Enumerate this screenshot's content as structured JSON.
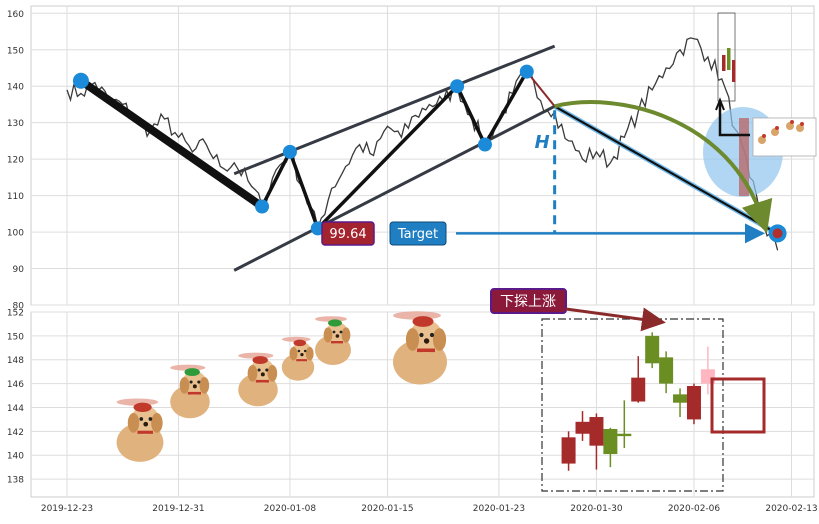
{
  "chart_data": [
    {
      "type": "line",
      "panel": "top",
      "ylim": [
        80,
        162
      ],
      "yticks": [
        "80",
        "90",
        "100",
        "110",
        "120",
        "130",
        "140",
        "150",
        "160"
      ],
      "grid": true,
      "price_path": [
        [
          "2019-12-23",
          139
        ],
        [
          "2019-12-24",
          138
        ],
        [
          "2019-12-25",
          141
        ],
        [
          "2019-12-26",
          136
        ],
        [
          "2019-12-27",
          135
        ],
        [
          "2019-12-28",
          130
        ],
        [
          "2019-12-29",
          128
        ],
        [
          "2019-12-30",
          131
        ],
        [
          "2019-12-31",
          126
        ],
        [
          "2020-01-01",
          122
        ],
        [
          "2020-01-02",
          124
        ],
        [
          "2020-01-03",
          118
        ],
        [
          "2020-01-04",
          119
        ],
        [
          "2020-01-05",
          114
        ],
        [
          "2020-01-06",
          107
        ],
        [
          "2020-01-07",
          117
        ],
        [
          "2020-01-08",
          122
        ],
        [
          "2020-01-09",
          111
        ],
        [
          "2020-01-10",
          101
        ],
        [
          "2020-01-11",
          112
        ],
        [
          "2020-01-12",
          118
        ],
        [
          "2020-01-13",
          124
        ],
        [
          "2020-01-14",
          121
        ],
        [
          "2020-01-15",
          129
        ],
        [
          "2020-01-16",
          126
        ],
        [
          "2020-01-17",
          132
        ],
        [
          "2020-01-18",
          135
        ],
        [
          "2020-01-19",
          136
        ],
        [
          "2020-01-20",
          140
        ],
        [
          "2020-01-21",
          132
        ],
        [
          "2020-01-22",
          124
        ],
        [
          "2020-01-23",
          131
        ],
        [
          "2020-01-24",
          138
        ],
        [
          "2020-01-25",
          144
        ],
        [
          "2020-01-26",
          136
        ],
        [
          "2020-01-27",
          133
        ],
        [
          "2020-01-28",
          125
        ],
        [
          "2020-01-29",
          120
        ],
        [
          "2020-01-30",
          122
        ],
        [
          "2020-01-31",
          119
        ],
        [
          "2020-02-01",
          126
        ],
        [
          "2020-02-02",
          133
        ],
        [
          "2020-02-03",
          139
        ],
        [
          "2020-02-04",
          145
        ],
        [
          "2020-02-05",
          150
        ],
        [
          "2020-02-06",
          153
        ],
        [
          "2020-02-07",
          148
        ],
        [
          "2020-02-08",
          142
        ],
        [
          "2020-02-09",
          128
        ],
        [
          "2020-02-10",
          115
        ],
        [
          "2020-02-11",
          102
        ],
        [
          "2020-02-12",
          95
        ]
      ],
      "pattern_points": [
        {
          "x": "2019-12-24",
          "y": 141.5
        },
        {
          "x": "2020-01-06",
          "y": 107
        },
        {
          "x": "2020-01-08",
          "y": 122
        },
        {
          "x": "2020-01-10",
          "y": 101
        },
        {
          "x": "2020-01-20",
          "y": 140
        },
        {
          "x": "2020-01-22",
          "y": 124
        },
        {
          "x": "2020-01-25",
          "y": 144
        }
      ],
      "trend_lines": [
        {
          "from": {
            "x": "2020-01-04",
            "y": 116
          },
          "to": {
            "x": "2020-01-27",
            "y": 151
          }
        },
        {
          "from": {
            "x": "2020-01-04",
            "y": 89.5
          },
          "to": {
            "x": "2020-01-27",
            "y": 134.5
          }
        }
      ],
      "breakout_point": {
        "x": "2020-01-27",
        "y": 134.5
      },
      "target_point": {
        "x": "2020-02-12",
        "y": 99.64
      },
      "annotations": {
        "height_label": "H",
        "price_value": "99.64",
        "target_label": "Target"
      },
      "colors": {
        "price": "#3a3a3a",
        "points": "#1b8ad8",
        "channel": "#363a44",
        "arrow_green": "#6e8a2e",
        "target_blue": "#1f7fc2",
        "price_badge": "#a3242f"
      }
    },
    {
      "type": "candlestick",
      "panel": "bottom",
      "ylim": [
        136.5,
        152
      ],
      "yticks": [
        "138",
        "140",
        "142",
        "144",
        "146",
        "148",
        "150",
        "152"
      ],
      "xticks": [
        "2019-12-23",
        "2019-12-31",
        "2020-01-08",
        "2020-01-15",
        "2020-01-23",
        "2020-01-30",
        "2020-02-06",
        "2020-02-13"
      ],
      "grid": true,
      "candles": [
        {
          "x": "2020-01-28",
          "open": 141.5,
          "high": 142.0,
          "low": 138.7,
          "close": 139.3
        },
        {
          "x": "2020-01-29",
          "open": 142.8,
          "high": 143.7,
          "low": 141.2,
          "close": 141.8
        },
        {
          "x": "2020-01-30",
          "open": 143.2,
          "high": 143.5,
          "low": 138.8,
          "close": 140.8
        },
        {
          "x": "2020-01-31",
          "open": 140.1,
          "high": 142.3,
          "low": 139.0,
          "close": 142.2
        },
        {
          "x": "2020-02-01",
          "open": 141.6,
          "high": 144.6,
          "low": 140.6,
          "close": 141.8
        },
        {
          "x": "2020-02-02",
          "open": 146.5,
          "high": 148.3,
          "low": 144.4,
          "close": 144.5
        },
        {
          "x": "2020-02-03",
          "open": 150.0,
          "high": 150.3,
          "low": 147.3,
          "close": 147.7
        },
        {
          "x": "2020-02-04",
          "open": 148.2,
          "high": 148.7,
          "low": 145.2,
          "close": 146.0
        },
        {
          "x": "2020-02-05",
          "open": 145.1,
          "high": 145.6,
          "low": 143.2,
          "close": 144.4
        },
        {
          "x": "2020-02-06",
          "open": 145.8,
          "high": 146.0,
          "low": 142.6,
          "close": 143.0
        },
        {
          "x": "2020-02-07",
          "open": 146.0,
          "high": 149.1,
          "low": 145.1,
          "close": 147.2
        }
      ],
      "candle_colors": [
        "#a52a2a",
        "#a52a2a",
        "#a52a2a",
        "#6b8e23",
        "#6b8e23",
        "#a52a2a",
        "#6b8e23",
        "#6b8e23",
        "#6b8e23",
        "#a52a2a",
        "#ffb6c1"
      ],
      "annotation": {
        "text": "下探上涨"
      },
      "colors": {
        "badge_fill": "#8b1a3a",
        "badge_border": "#5a1a8a",
        "box": "#a52a2a"
      }
    }
  ]
}
